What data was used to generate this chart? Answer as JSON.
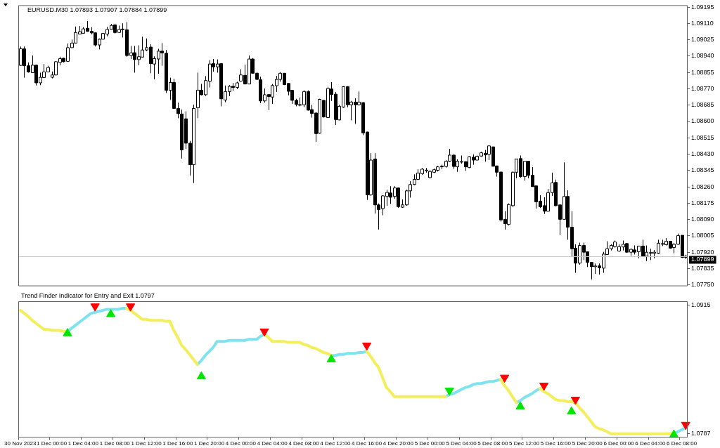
{
  "chart_data": [
    {
      "type": "candlestick",
      "title": "EURUSD.M30 1.07893 1.07907 1.07884 1.07899",
      "tick_labels": "y",
      "grid": false,
      "legend": false,
      "categories": [
        null,
        null,
        null,
        null,
        null,
        null,
        null,
        null,
        null,
        null,
        null,
        null,
        null,
        null,
        null,
        null,
        null,
        null,
        null,
        null,
        null,
        null,
        null,
        null,
        null,
        null,
        null,
        null,
        null,
        null,
        null,
        null,
        null,
        null,
        null,
        null,
        null,
        null,
        null,
        null,
        null,
        null,
        null,
        null,
        null,
        null,
        null,
        null,
        null,
        null,
        null,
        null,
        null,
        null,
        null,
        null,
        null,
        null,
        null,
        null,
        null,
        null,
        null,
        null,
        null,
        null,
        null,
        null,
        null,
        null,
        null,
        null,
        null,
        null,
        null,
        null,
        null,
        null,
        null,
        null,
        null,
        null,
        null,
        null,
        null,
        null,
        null,
        null,
        null,
        null,
        null,
        null,
        null,
        null,
        null,
        null,
        null,
        null,
        null,
        null,
        null,
        null,
        null,
        null,
        null,
        null,
        null,
        null,
        null,
        null,
        null,
        null,
        null,
        null,
        null,
        null,
        null,
        null,
        null,
        null,
        null,
        null,
        null,
        null,
        null,
        null,
        null,
        null,
        null,
        null,
        null,
        null,
        null,
        null,
        null,
        null,
        null,
        null,
        null,
        null,
        null,
        null,
        null,
        null,
        null,
        null,
        null,
        null,
        null,
        null,
        null,
        null,
        null,
        null,
        null,
        null,
        null,
        null,
        null,
        null,
        null,
        null,
        null,
        null,
        null,
        null,
        null,
        null,
        null,
        null
      ],
      "ylim": [
        1.07743,
        1.09205
      ],
      "yticks": [
        {
          "value": 1.0775,
          "label": "1.07750"
        },
        {
          "value": 1.07835,
          "label": "1.07835"
        },
        {
          "value": 1.0792,
          "label": "1.07920"
        },
        {
          "value": 1.08005,
          "label": "1.08005"
        },
        {
          "value": 1.0809,
          "label": "1.08090"
        },
        {
          "value": 1.08175,
          "label": "1.08175"
        },
        {
          "value": 1.0826,
          "label": "1.08260"
        },
        {
          "value": 1.08345,
          "label": "1.08345"
        },
        {
          "value": 1.0843,
          "label": "1.08430"
        },
        {
          "value": 1.08515,
          "label": "1.08515"
        },
        {
          "value": 1.086,
          "label": "1.08600"
        },
        {
          "value": 1.08685,
          "label": "1.08685"
        },
        {
          "value": 1.0877,
          "label": "1.08770"
        },
        {
          "value": 1.08855,
          "label": "1.08855"
        },
        {
          "value": 1.0894,
          "label": "1.08940"
        },
        {
          "value": 1.09025,
          "label": "1.09025"
        },
        {
          "value": 1.0911,
          "label": "1.09110"
        },
        {
          "value": 1.09195,
          "label": "1.09195"
        }
      ],
      "ref_lines": [
        {
          "axis": "y",
          "value": 1.07899,
          "label": "1.07899",
          "color": "#c8c8c8"
        }
      ],
      "ohlc": [
        [
          1.08892,
          1.0899,
          1.0889,
          1.08978
        ],
        [
          1.08978,
          1.0899,
          1.08828,
          1.0889
        ],
        [
          1.0889,
          1.08907,
          1.08854,
          1.08858
        ],
        [
          1.08854,
          1.08943,
          1.08854,
          1.08893
        ],
        [
          1.08893,
          1.08896,
          1.08787,
          1.08801
        ],
        [
          1.08801,
          1.08854,
          1.08789,
          1.0883
        ],
        [
          1.08828,
          1.08899,
          1.08828,
          1.08858
        ],
        [
          1.08858,
          1.0889,
          1.08858,
          1.08881
        ],
        [
          1.0883,
          1.0886,
          1.08824,
          1.08842
        ],
        [
          1.08842,
          1.08913,
          1.0884,
          1.08911
        ],
        [
          1.08907,
          1.08937,
          1.08892,
          1.08927
        ],
        [
          1.08929,
          1.08931,
          1.08907,
          1.08911
        ],
        [
          1.08913,
          1.09006,
          1.08913,
          1.08984
        ],
        [
          1.08984,
          1.09026,
          1.08984,
          1.09008
        ],
        [
          1.09008,
          1.09094,
          1.09008,
          1.09063
        ],
        [
          1.09055,
          1.09097,
          1.09055,
          1.09067
        ],
        [
          1.09059,
          1.09091,
          1.09058,
          1.09082
        ],
        [
          1.09085,
          1.09123,
          1.09067,
          1.09069
        ],
        [
          1.09069,
          1.09091,
          1.09053,
          1.09061
        ],
        [
          1.09061,
          1.09065,
          1.0899,
          1.08998
        ],
        [
          1.08998,
          1.09032,
          1.08975,
          1.09028
        ],
        [
          1.09028,
          1.09061,
          1.09028,
          1.09058
        ],
        [
          1.09055,
          1.09093,
          1.09043,
          1.09079
        ],
        [
          1.09079,
          1.09108,
          1.09079,
          1.091
        ],
        [
          1.09103,
          1.09105,
          1.09058,
          1.09063
        ],
        [
          1.09063,
          1.09099,
          1.09061,
          1.09079
        ],
        [
          1.09079,
          1.09111,
          1.09037,
          1.09081
        ],
        [
          1.09077,
          1.09117,
          1.08937,
          1.08943
        ],
        [
          1.08943,
          1.08993,
          1.08925,
          1.08957
        ],
        [
          1.08958,
          1.08993,
          1.08854,
          1.08922
        ],
        [
          1.08922,
          1.08996,
          1.08892,
          1.08937
        ],
        [
          1.08935,
          1.09041,
          1.08935,
          1.08972
        ],
        [
          1.08972,
          1.09032,
          1.08966,
          1.08984
        ],
        [
          1.08987,
          1.09002,
          1.08851,
          1.08901
        ],
        [
          1.08899,
          1.08939,
          1.08819,
          1.08927
        ],
        [
          1.08925,
          1.08978,
          1.08848,
          1.08966
        ],
        [
          1.08966,
          1.09008,
          1.0889,
          1.08957
        ],
        [
          1.08955,
          1.08972,
          1.08748,
          1.08762
        ],
        [
          1.08762,
          1.08828,
          1.08712,
          1.08803
        ],
        [
          1.08803,
          1.08822,
          1.08667,
          1.08668
        ],
        [
          1.08668,
          1.08698,
          1.08617,
          1.08641
        ],
        [
          1.08639,
          1.08662,
          1.08407,
          1.08452
        ],
        [
          1.08614,
          1.08653,
          1.08458,
          1.08487
        ],
        [
          1.08487,
          1.08499,
          1.08319,
          1.08375
        ],
        [
          1.08375,
          1.08688,
          1.0828,
          1.08668
        ],
        [
          1.08671,
          1.08854,
          1.08617,
          1.08763
        ],
        [
          1.08763,
          1.08795,
          1.08736,
          1.08739
        ],
        [
          1.08739,
          1.08836,
          1.08733,
          1.08813
        ],
        [
          1.08809,
          1.08919,
          1.08777,
          1.08899
        ],
        [
          1.08901,
          1.08925,
          1.08859,
          1.08884
        ],
        [
          1.08884,
          1.08923,
          1.08854,
          1.08899
        ],
        [
          1.08901,
          1.08904,
          1.08679,
          1.08718
        ],
        [
          1.08712,
          1.08787,
          1.087,
          1.08756
        ],
        [
          1.08756,
          1.08789,
          1.08732,
          1.08783
        ],
        [
          1.08783,
          1.08801,
          1.08759,
          1.08777
        ],
        [
          1.08777,
          1.08807,
          1.08768,
          1.08801
        ],
        [
          1.0881,
          1.08872,
          1.08807,
          1.08842
        ],
        [
          1.0884,
          1.08896,
          1.08795,
          1.08795
        ],
        [
          1.08795,
          1.08943,
          1.08795,
          1.08925
        ],
        [
          1.08925,
          1.0893,
          1.08849,
          1.08851
        ],
        [
          1.08851,
          1.08855,
          1.08817,
          1.08819
        ],
        [
          1.08817,
          1.08833,
          1.08695,
          1.08707
        ],
        [
          1.08707,
          1.08772,
          1.08698,
          1.08739
        ],
        [
          1.0874,
          1.08742,
          1.08659,
          1.0873
        ],
        [
          1.08727,
          1.08795,
          1.08692,
          1.08787
        ],
        [
          1.08786,
          1.08837,
          1.08754,
          1.08819
        ],
        [
          1.08819,
          1.08857,
          1.08807,
          1.08851
        ],
        [
          1.08851,
          1.08851,
          1.08789,
          1.08792
        ],
        [
          1.08798,
          1.08798,
          1.08736,
          1.08757
        ],
        [
          1.08762,
          1.08762,
          1.08691,
          1.0871
        ],
        [
          1.0871,
          1.08718,
          1.08679,
          1.08689
        ],
        [
          1.08687,
          1.08724,
          1.08679,
          1.08688
        ],
        [
          1.08687,
          1.08762,
          1.08675,
          1.08756
        ],
        [
          1.08756,
          1.08762,
          1.08657,
          1.08659
        ],
        [
          1.08662,
          1.08687,
          1.0862,
          1.08642
        ],
        [
          1.08644,
          1.08647,
          1.08494,
          1.08537
        ],
        [
          1.08539,
          1.08718,
          1.08537,
          1.08715
        ],
        [
          1.0871,
          1.08713,
          1.0862,
          1.08624
        ],
        [
          1.0862,
          1.08778,
          1.08618,
          1.08772
        ],
        [
          1.08769,
          1.08805,
          1.08707,
          1.0874
        ],
        [
          1.08742,
          1.08754,
          1.08582,
          1.0861
        ],
        [
          1.08608,
          1.08687,
          1.08606,
          1.08679
        ],
        [
          1.08675,
          1.08784,
          1.08671,
          1.08781
        ],
        [
          1.08781,
          1.08784,
          1.08674,
          1.08687
        ],
        [
          1.08687,
          1.08707,
          1.08606,
          1.08701
        ],
        [
          1.08701,
          1.08721,
          1.08588,
          1.08687
        ],
        [
          1.08687,
          1.08756,
          1.08683,
          1.08701
        ],
        [
          1.08698,
          1.08701,
          1.08529,
          1.08541
        ],
        [
          1.08545,
          1.08547,
          1.08192,
          1.08218
        ],
        [
          1.08218,
          1.08435,
          1.08213,
          1.08399
        ],
        [
          1.08405,
          1.08435,
          1.08121,
          1.08166
        ],
        [
          1.08166,
          1.08174,
          1.08038,
          1.08142
        ],
        [
          1.08147,
          1.08216,
          1.08112,
          1.08213
        ],
        [
          1.0821,
          1.08245,
          1.08162,
          1.08231
        ],
        [
          1.08228,
          1.08263,
          1.08171,
          1.08206
        ],
        [
          1.0821,
          1.08263,
          1.08198,
          1.08254
        ],
        [
          1.08254,
          1.08257,
          1.08151,
          1.08157
        ],
        [
          1.08154,
          1.08194,
          1.08151,
          1.08166
        ],
        [
          1.08166,
          1.08245,
          1.08162,
          1.08239
        ],
        [
          1.08239,
          1.08289,
          1.08204,
          1.08272
        ],
        [
          1.08272,
          1.08325,
          1.08269,
          1.08299
        ],
        [
          1.08299,
          1.08352,
          1.08296,
          1.08332
        ],
        [
          1.08328,
          1.08358,
          1.08322,
          1.08352
        ],
        [
          1.08346,
          1.08358,
          1.08334,
          1.08347
        ],
        [
          1.08308,
          1.08346,
          1.08304,
          1.0834
        ],
        [
          1.08336,
          1.08355,
          1.08332,
          1.08349
        ],
        [
          1.08346,
          1.08369,
          1.0834,
          1.08364
        ],
        [
          1.08367,
          1.08375,
          1.08352,
          1.08368
        ],
        [
          1.08366,
          1.08399,
          1.0836,
          1.08393
        ],
        [
          1.08393,
          1.08458,
          1.0839,
          1.08425
        ],
        [
          1.08425,
          1.08429,
          1.08354,
          1.08366
        ],
        [
          1.08364,
          1.08403,
          1.08338,
          1.08393
        ],
        [
          1.08391,
          1.08423,
          1.08381,
          1.08392
        ],
        [
          1.08391,
          1.08393,
          1.08343,
          1.08364
        ],
        [
          1.0836,
          1.08419,
          1.08358,
          1.08417
        ],
        [
          1.08414,
          1.08429,
          1.08375,
          1.08399
        ],
        [
          1.08399,
          1.08423,
          1.08399,
          1.08419
        ],
        [
          1.0842,
          1.08443,
          1.08417,
          1.08437
        ],
        [
          1.08434,
          1.08452,
          1.08391,
          1.08426
        ],
        [
          1.08429,
          1.08473,
          1.08399,
          1.08473
        ],
        [
          1.08468,
          1.08468,
          1.08367,
          1.08367
        ],
        [
          1.08369,
          1.08369,
          1.08313,
          1.08336
        ],
        [
          1.08337,
          1.08337,
          1.0808,
          1.08088
        ],
        [
          1.08091,
          1.08133,
          1.08038,
          1.08068
        ],
        [
          1.08064,
          1.08174,
          1.08059,
          1.08168
        ],
        [
          1.08162,
          1.0834,
          1.08156,
          1.08336
        ],
        [
          1.08336,
          1.08405,
          1.08304,
          1.08405
        ],
        [
          1.08407,
          1.08423,
          1.08308,
          1.08313
        ],
        [
          1.08313,
          1.08395,
          1.08292,
          1.08393
        ],
        [
          1.08393,
          1.08393,
          1.08304,
          1.0832
        ],
        [
          1.0832,
          1.08363,
          1.08261,
          1.08261
        ],
        [
          1.08265,
          1.08265,
          1.08147,
          1.08182
        ],
        [
          1.08186,
          1.08216,
          1.0815,
          1.08156
        ],
        [
          1.08162,
          1.08206,
          1.08119,
          1.08133
        ],
        [
          1.08133,
          1.08249,
          1.08133,
          1.0823
        ],
        [
          1.0823,
          1.08334,
          1.08213,
          1.08281
        ],
        [
          1.08283,
          1.08298,
          1.08159,
          1.08162
        ],
        [
          1.08166,
          1.08166,
          1.08009,
          1.08091
        ],
        [
          1.08091,
          1.08387,
          1.08091,
          1.0821
        ],
        [
          1.0821,
          1.08242,
          1.07985,
          1.0805
        ],
        [
          1.0805,
          1.08133,
          1.07899,
          1.07938
        ],
        [
          1.07941,
          1.07961,
          1.07813,
          1.07863
        ],
        [
          1.07863,
          1.0797,
          1.07855,
          1.07955
        ],
        [
          1.07955,
          1.0797,
          1.07879,
          1.0792
        ],
        [
          1.07922,
          1.07922,
          1.07843,
          1.07867
        ],
        [
          1.07867,
          1.07867,
          1.07778,
          1.07845
        ],
        [
          1.07845,
          1.07861,
          1.07807,
          1.07848
        ],
        [
          1.07849,
          1.07861,
          1.07804,
          1.07839
        ],
        [
          1.07837,
          1.07922,
          1.07813,
          1.0791
        ],
        [
          1.07908,
          1.07977,
          1.07908,
          1.07938
        ],
        [
          1.07938,
          1.07961,
          1.07929,
          1.07955
        ],
        [
          1.07949,
          1.07981,
          1.07944,
          1.07973
        ],
        [
          1.07926,
          1.07961,
          1.07922,
          1.07949
        ],
        [
          1.07947,
          1.07981,
          1.07929,
          1.07961
        ],
        [
          1.07965,
          1.07967,
          1.07917,
          1.0792
        ],
        [
          1.0792,
          1.07938,
          1.07902,
          1.07935
        ],
        [
          1.07932,
          1.07955,
          1.07908,
          1.0792
        ],
        [
          1.07922,
          1.07952,
          1.07888,
          1.07952
        ],
        [
          1.07952,
          1.07985,
          1.07896,
          1.07899
        ],
        [
          1.07899,
          1.07955,
          1.07874,
          1.0792
        ],
        [
          1.07917,
          1.07938,
          1.07879,
          1.07918
        ],
        [
          1.07914,
          1.07932,
          1.07888,
          1.0792
        ],
        [
          1.07914,
          1.07985,
          1.07911,
          1.07967
        ],
        [
          1.07964,
          1.07985,
          1.07952,
          1.07965
        ],
        [
          1.07959,
          1.07993,
          1.07955,
          1.07977
        ],
        [
          1.07977,
          1.07977,
          1.07938,
          1.07941
        ],
        [
          1.07944,
          1.07967,
          1.07914,
          1.07961
        ],
        [
          1.07961,
          1.08017,
          1.07959,
          1.08006
        ],
        [
          1.08008,
          1.08008,
          1.0789,
          1.07893
        ],
        [
          1.07893,
          1.07907,
          1.07884,
          1.07899
        ]
      ]
    },
    {
      "type": "line",
      "title": "Trend Finder Indicator for Entry and Exit 1.0797",
      "grid": false,
      "legend": false,
      "line_style": "solid",
      "categories": [
        "30 Nov 2023",
        null,
        null,
        null,
        null,
        null,
        null,
        null,
        "1 Dec 00:00",
        null,
        null,
        null,
        null,
        null,
        null,
        null,
        "1 Dec 04:00",
        null,
        null,
        null,
        null,
        null,
        null,
        null,
        "1 Dec 08:00",
        null,
        null,
        null,
        null,
        null,
        null,
        null,
        "1 Dec 12:00",
        null,
        null,
        null,
        null,
        null,
        null,
        null,
        "1 Dec 16:00",
        null,
        null,
        null,
        null,
        null,
        null,
        null,
        "1 Dec 20:00",
        null,
        null,
        null,
        null,
        null,
        null,
        null,
        "4 Dec 00:00",
        null,
        null,
        null,
        null,
        null,
        null,
        null,
        "4 Dec 04:00",
        null,
        null,
        null,
        null,
        null,
        null,
        null,
        "4 Dec 08:00",
        null,
        null,
        null,
        null,
        null,
        null,
        null,
        "4 Dec 12:00",
        null,
        null,
        null,
        null,
        null,
        null,
        null,
        "4 Dec 16:00",
        null,
        null,
        null,
        null,
        null,
        null,
        null,
        "4 Dec 20:00",
        null,
        null,
        null,
        null,
        null,
        null,
        null,
        "5 Dec 00:00",
        null,
        null,
        null,
        null,
        null,
        null,
        null,
        "5 Dec 04:00",
        null,
        null,
        null,
        null,
        null,
        null,
        null,
        "5 Dec 08:00",
        null,
        null,
        null,
        null,
        null,
        null,
        null,
        "5 Dec 12:00",
        null,
        null,
        null,
        null,
        null,
        null,
        null,
        "5 Dec 16:00",
        null,
        null,
        null,
        null,
        null,
        null,
        null,
        "5 Dec 20:00",
        null,
        null,
        null,
        null,
        null,
        null,
        null,
        "6 Dec 00:00",
        null,
        null,
        null,
        null,
        null,
        null,
        null,
        "6 Dec 04:00",
        null,
        null,
        null,
        null,
        null,
        null,
        null,
        "6 Dec 08:00",
        null
      ],
      "ylim": [
        1.0783,
        1.0919
      ],
      "yticks": [
        1.0915,
        1.0787
      ],
      "series": [
        {
          "type": "line",
          "color": "#f2ee5c",
          "values": [
            1.091,
            1.0907,
            1.0904,
            1.09,
            1.0897,
            1.0894,
            1.0891,
            1.0891,
            1.089,
            1.089,
            1.089,
            1.0889,
            1.0889,
            null,
            null,
            null,
            null,
            null,
            null,
            null,
            null,
            null,
            null,
            null,
            null,
            null,
            null,
            1.0912,
            1.091,
            1.0907,
            1.0904,
            1.0901,
            1.0901,
            1.09,
            1.09,
            1.09,
            1.09,
            1.0899,
            1.0899,
            1.089,
            1.0883,
            1.0875,
            1.0871,
            1.0866,
            1.0861,
            1.0856,
            null,
            null,
            null,
            null,
            null,
            null,
            null,
            null,
            null,
            null,
            null,
            null,
            null,
            null,
            null,
            null,
            1.0886,
            1.0883,
            1.0879,
            1.0879,
            1.0879,
            1.0879,
            1.0878,
            1.0878,
            1.0878,
            1.0878,
            1.0876,
            1.0875,
            1.0873,
            1.0872,
            1.087,
            1.0868,
            1.0867,
            1.0865,
            null,
            null,
            null,
            null,
            null,
            null,
            null,
            null,
            1.0869,
            1.0864,
            1.0858,
            1.0853,
            1.0843,
            1.0833,
            1.0829,
            1.0824,
            1.0824,
            1.0824,
            1.0824,
            1.0824,
            1.0824,
            1.0824,
            1.0824,
            1.0824,
            1.0824,
            1.0824,
            1.0824,
            1.0824,
            1.0824,
            null,
            null,
            null,
            null,
            null,
            null,
            null,
            null,
            null,
            null,
            null,
            null,
            null,
            1.0841,
            1.0835,
            1.083,
            1.0824,
            1.0818,
            null,
            null,
            null,
            null,
            null,
            1.0832,
            1.0829,
            1.0827,
            1.0824,
            1.0821,
            1.082,
            1.082,
            1.0819,
            1.0819,
            1.0818,
            1.0813,
            1.0809,
            1.0804,
            1.0799,
            1.0794,
            1.0792,
            1.0791,
            1.0789,
            1.0787,
            1.0787,
            1.0787,
            1.0787,
            1.0787,
            1.0787,
            1.0787,
            1.0787,
            1.0787,
            1.0787,
            1.0787,
            1.0787,
            1.0787,
            1.0787,
            1.0787,
            1.0787,
            1.0787,
            null,
            null,
            null
          ]
        },
        {
          "type": "line",
          "color": "#7fe3ef",
          "values": [
            null,
            null,
            null,
            null,
            null,
            null,
            null,
            null,
            null,
            null,
            null,
            null,
            1.0889,
            1.0892,
            1.0895,
            1.0898,
            1.0901,
            1.0904,
            1.0907,
            1.0908,
            1.0909,
            1.091,
            1.0911,
            1.0911,
            1.0911,
            1.0911,
            1.0912,
            1.0912,
            null,
            null,
            null,
            null,
            null,
            null,
            null,
            null,
            null,
            null,
            null,
            null,
            null,
            null,
            null,
            null,
            null,
            1.0856,
            1.086,
            1.0865,
            1.0869,
            1.0873,
            1.0879,
            1.0879,
            1.0879,
            1.088,
            1.088,
            1.088,
            1.088,
            1.088,
            1.0881,
            1.0881,
            1.0881,
            1.0884,
            1.0886,
            null,
            null,
            null,
            null,
            null,
            null,
            null,
            null,
            null,
            null,
            null,
            null,
            null,
            null,
            null,
            null,
            1.0865,
            1.0865,
            1.0866,
            1.0866,
            1.0867,
            1.0867,
            1.0867,
            1.0868,
            1.0868,
            1.0869,
            null,
            null,
            null,
            null,
            null,
            null,
            null,
            null,
            null,
            null,
            null,
            null,
            null,
            null,
            null,
            null,
            null,
            null,
            null,
            1.0824,
            1.0826,
            1.0827,
            1.0829,
            1.0831,
            1.0833,
            1.0834,
            1.0836,
            1.0837,
            1.0837,
            1.0838,
            1.0839,
            1.0839,
            1.084,
            1.0841,
            null,
            null,
            null,
            1.0818,
            1.082,
            1.0823,
            1.0825,
            1.0827,
            1.083,
            1.0832,
            null,
            null,
            null,
            null,
            null,
            null,
            null,
            null,
            null,
            null,
            null,
            null,
            null,
            null,
            null,
            null,
            null,
            null,
            null,
            null,
            null,
            null,
            null,
            null,
            null,
            null,
            null,
            null,
            null,
            null,
            null,
            null,
            null,
            1.0787,
            1.0789,
            1.0791,
            1.0793
          ]
        },
        {
          "type": "scatter",
          "marker": "triangle",
          "color": "#00e600",
          "values": [
            null,
            null,
            null,
            null,
            null,
            null,
            null,
            null,
            null,
            null,
            null,
            null,
            1.0887,
            null,
            null,
            null,
            null,
            null,
            null,
            null,
            null,
            null,
            null,
            1.0906,
            null,
            null,
            null,
            null,
            null,
            null,
            null,
            null,
            null,
            null,
            null,
            null,
            null,
            null,
            null,
            null,
            null,
            null,
            null,
            null,
            null,
            null,
            1.0844,
            null,
            null,
            null,
            null,
            null,
            null,
            null,
            null,
            null,
            null,
            null,
            null,
            null,
            null,
            null,
            null,
            null,
            null,
            null,
            null,
            null,
            null,
            null,
            null,
            null,
            null,
            null,
            null,
            null,
            null,
            null,
            null,
            1.0861,
            null,
            null,
            null,
            null,
            null,
            null,
            null,
            null,
            null,
            null,
            null,
            null,
            null,
            null,
            null,
            null,
            null,
            null,
            null,
            null,
            null,
            null,
            null,
            null,
            null,
            null,
            null,
            null,
            null,
            1.083,
            null,
            null,
            null,
            null,
            null,
            null,
            null,
            null,
            null,
            null,
            null,
            null,
            null,
            null,
            null,
            null,
            null,
            1.0814,
            null,
            null,
            null,
            null,
            null,
            null,
            null,
            null,
            null,
            null,
            null,
            null,
            1.0809,
            null,
            null,
            null,
            null,
            null,
            null,
            null,
            null,
            null,
            null,
            null,
            null,
            null,
            null,
            null,
            null,
            null,
            null,
            null,
            null,
            null,
            null,
            null,
            null,
            null,
            1.0786,
            null,
            null,
            null
          ]
        },
        {
          "type": "scatter",
          "marker": "triangle",
          "color": "#ff0000",
          "values": [
            null,
            null,
            null,
            null,
            null,
            null,
            null,
            null,
            null,
            null,
            null,
            null,
            null,
            null,
            null,
            null,
            null,
            null,
            null,
            1.0914,
            null,
            null,
            null,
            null,
            null,
            null,
            null,
            null,
            1.0914,
            null,
            null,
            null,
            null,
            null,
            null,
            null,
            null,
            null,
            null,
            null,
            null,
            null,
            null,
            null,
            null,
            null,
            null,
            null,
            null,
            null,
            null,
            null,
            null,
            null,
            null,
            null,
            null,
            null,
            null,
            null,
            null,
            null,
            1.0889,
            null,
            null,
            null,
            null,
            null,
            null,
            null,
            null,
            null,
            null,
            null,
            null,
            null,
            null,
            null,
            null,
            null,
            null,
            null,
            null,
            null,
            null,
            null,
            null,
            null,
            1.0875,
            null,
            null,
            null,
            null,
            null,
            null,
            null,
            null,
            null,
            null,
            null,
            null,
            null,
            null,
            null,
            null,
            null,
            null,
            null,
            null,
            null,
            null,
            null,
            null,
            null,
            null,
            null,
            null,
            null,
            null,
            null,
            null,
            null,
            null,
            1.0843,
            null,
            null,
            null,
            null,
            null,
            null,
            null,
            null,
            null,
            1.0835,
            null,
            null,
            null,
            null,
            null,
            null,
            null,
            1.0821,
            null,
            null,
            null,
            null,
            null,
            null,
            null,
            null,
            null,
            null,
            null,
            null,
            null,
            null,
            null,
            null,
            null,
            null,
            null,
            null,
            null,
            null,
            null,
            null,
            null,
            null,
            null,
            1.0796
          ]
        }
      ]
    }
  ]
}
